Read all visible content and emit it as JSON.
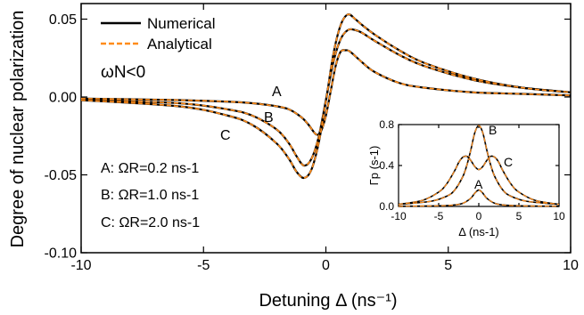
{
  "chart_data": [
    {
      "type": "line",
      "xlabel": "Detuning Δ (ns⁻¹)",
      "ylabel": "Degree of nuclear polarization",
      "xlim": [
        -10,
        10
      ],
      "ylim": [
        -0.1,
        0.06
      ],
      "xticks": [
        "-10",
        "-5",
        "0",
        "5",
        "10"
      ],
      "yticks": [
        "0.05",
        "0.00",
        "-0.05",
        "-0.10"
      ],
      "legend": {
        "placement": "top-left",
        "entries": [
          {
            "label": "Numerical",
            "style": "solid",
            "color": "#000000"
          },
          {
            "label": "Analytical",
            "style": "dashed",
            "color": "#ff8c1a"
          }
        ]
      },
      "annotation": "ωN<0",
      "parameter_labels": [
        {
          "curve": "A",
          "text": "A: ΩR=0.2 ns-1"
        },
        {
          "curve": "B",
          "text": "B: ΩR=1.0 ns-1"
        },
        {
          "curve": "C",
          "text": "C: ΩR=2.0 ns-1"
        }
      ],
      "series": [
        {
          "name": "A",
          "x": [
            -10,
            -6,
            -4,
            -3,
            -2,
            -1.5,
            -1,
            -0.7,
            -0.4,
            -0.2,
            0,
            0.2,
            0.4,
            0.6,
            0.8,
            1,
            1.5,
            2,
            3,
            4,
            6,
            8,
            10
          ],
          "values": [
            -0.001,
            -0.002,
            -0.003,
            -0.004,
            -0.006,
            -0.008,
            -0.013,
            -0.018,
            -0.024,
            -0.022,
            -0.012,
            0.004,
            0.02,
            0.029,
            0.03,
            0.029,
            0.022,
            0.016,
            0.009,
            0.006,
            0.003,
            0.002,
            0.001
          ]
        },
        {
          "name": "B",
          "x": [
            -10,
            -6,
            -4,
            -3,
            -2,
            -1.5,
            -1.2,
            -0.9,
            -0.6,
            -0.3,
            0,
            0.3,
            0.6,
            0.9,
            1.2,
            1.5,
            2,
            3,
            4,
            6,
            8,
            10
          ],
          "values": [
            -0.002,
            -0.004,
            -0.008,
            -0.012,
            -0.021,
            -0.03,
            -0.038,
            -0.044,
            -0.04,
            -0.026,
            -0.002,
            0.022,
            0.037,
            0.043,
            0.043,
            0.041,
            0.036,
            0.027,
            0.02,
            0.011,
            0.006,
            0.003
          ]
        },
        {
          "name": "C",
          "x": [
            -10,
            -6,
            -4,
            -3,
            -2,
            -1.5,
            -1.2,
            -0.9,
            -0.6,
            -0.3,
            0,
            0.3,
            0.6,
            0.9,
            1.2,
            1.5,
            2,
            3,
            4,
            6,
            8,
            10
          ],
          "values": [
            -0.002,
            -0.006,
            -0.012,
            -0.018,
            -0.03,
            -0.04,
            -0.048,
            -0.052,
            -0.047,
            -0.03,
            -0.003,
            0.027,
            0.046,
            0.053,
            0.05,
            0.046,
            0.04,
            0.03,
            0.022,
            0.012,
            0.006,
            0.003
          ]
        }
      ]
    },
    {
      "type": "line",
      "xlabel": "Δ (ns-1)",
      "ylabel": "Γp (s-1)",
      "xlim": [
        -10,
        10
      ],
      "ylim": [
        0,
        0.8
      ],
      "xticks": [
        "-10",
        "-5",
        "0",
        "5",
        "10"
      ],
      "yticks": [
        "0.8",
        "0.4",
        "0.0"
      ],
      "series": [
        {
          "name": "A",
          "x": [
            -10,
            -5,
            -3,
            -2,
            -1,
            -0.5,
            0,
            0.5,
            1,
            2,
            3,
            5,
            10
          ],
          "values": [
            0.002,
            0.006,
            0.015,
            0.03,
            0.08,
            0.13,
            0.16,
            0.13,
            0.08,
            0.03,
            0.015,
            0.006,
            0.002
          ]
        },
        {
          "name": "B",
          "x": [
            -10,
            -6,
            -4,
            -3,
            -2,
            -1.5,
            -1,
            -0.5,
            0,
            0.5,
            1,
            1.5,
            2,
            3,
            4,
            6,
            10
          ],
          "values": [
            0.02,
            0.05,
            0.1,
            0.16,
            0.29,
            0.4,
            0.55,
            0.72,
            0.79,
            0.72,
            0.55,
            0.4,
            0.29,
            0.16,
            0.1,
            0.05,
            0.02
          ]
        },
        {
          "name": "C",
          "x": [
            -10,
            -7,
            -5,
            -4,
            -3,
            -2.5,
            -2,
            -1.5,
            -1,
            -0.5,
            0,
            0.5,
            1,
            1.5,
            2,
            2.5,
            3,
            4,
            5,
            7,
            10
          ],
          "values": [
            0.02,
            0.06,
            0.14,
            0.22,
            0.35,
            0.43,
            0.48,
            0.49,
            0.45,
            0.39,
            0.36,
            0.39,
            0.45,
            0.49,
            0.48,
            0.43,
            0.35,
            0.22,
            0.14,
            0.06,
            0.02
          ]
        }
      ],
      "curve_labels": [
        "A",
        "B",
        "C"
      ]
    }
  ]
}
